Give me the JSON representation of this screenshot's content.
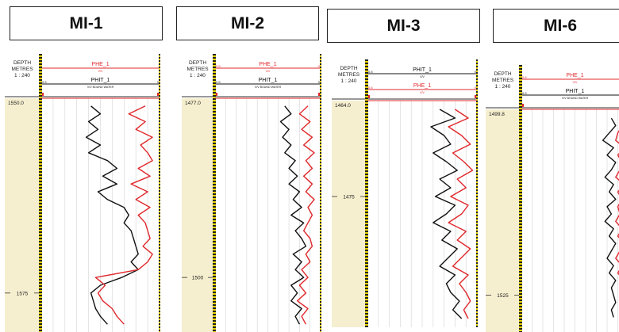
{
  "chart_data": [
    {
      "type": "line",
      "well": "MI-1",
      "depth_header": [
        "DEPTH",
        "METRES",
        "1 : 240"
      ],
      "curve_headers": [
        {
          "name": "PHE_1",
          "color": "#e0282c",
          "scale_left": "",
          "scale_right": "",
          "unit": "V/V"
        },
        {
          "name": "PHIT_1",
          "color": "#111111",
          "scale_left": "0.5",
          "scale_right": "0",
          "unit": "V/V BOUND WATER"
        }
      ],
      "top_depth_label": "1550.0",
      "depth_ticks": [
        {
          "depth": 1575,
          "label": "1575"
        }
      ],
      "depth_range": [
        1550.0,
        1580
      ],
      "x_scale": [
        0.5,
        0
      ],
      "series": [
        {
          "name": "PHIT_1",
          "color": "#111111",
          "depth": [
            1551,
            1552,
            1553,
            1554,
            1555,
            1556,
            1557,
            1558,
            1559,
            1560,
            1561,
            1562,
            1563,
            1564,
            1565,
            1566,
            1567,
            1568,
            1569,
            1570,
            1571,
            1572,
            1573,
            1574,
            1575,
            1576,
            1577,
            1578,
            1579
          ],
          "value": [
            0.29,
            0.25,
            0.3,
            0.26,
            0.31,
            0.25,
            0.3,
            0.22,
            0.18,
            0.24,
            0.18,
            0.26,
            0.22,
            0.15,
            0.13,
            0.15,
            0.12,
            0.11,
            0.1,
            0.09,
            0.12,
            0.09,
            0.16,
            0.25,
            0.29,
            0.28,
            0.27,
            0.25,
            0.22
          ]
        },
        {
          "name": "PHE_1",
          "color": "#e0282c",
          "depth": [
            1551,
            1552,
            1553,
            1554,
            1555,
            1556,
            1557,
            1558,
            1559,
            1560,
            1561,
            1562,
            1563,
            1564,
            1565,
            1566,
            1567,
            1568,
            1569,
            1570,
            1571,
            1572,
            1573,
            1574,
            1575,
            1576,
            1577,
            1578,
            1579
          ],
          "value": [
            0.06,
            0.13,
            0.06,
            0.1,
            0.03,
            0.08,
            0.05,
            0.03,
            0.09,
            0.04,
            0.12,
            0.05,
            0.1,
            0.04,
            0.09,
            0.06,
            0.05,
            0.04,
            0.07,
            0.03,
            0.05,
            0.09,
            0.27,
            0.23,
            0.26,
            0.24,
            0.2,
            0.18,
            0.15
          ]
        }
      ]
    },
    {
      "type": "line",
      "well": "MI-2",
      "depth_header": [
        "DEPTH",
        "METRES",
        "1 : 240"
      ],
      "curve_headers": [
        {
          "name": "PHE_1",
          "color": "#e0282c",
          "scale_left": "0.5",
          "scale_right": "0",
          "unit": "V/V"
        },
        {
          "name": "PHIT_1",
          "color": "#111111",
          "scale_left": "0.5",
          "scale_right": "0",
          "unit": "V/V BOUND WATER"
        }
      ],
      "top_depth_label": "1477.0",
      "depth_ticks": [
        {
          "depth": 1500,
          "label": "1500"
        }
      ],
      "depth_range": [
        1477.0,
        1507
      ],
      "x_scale": [
        0.5,
        0
      ],
      "series": [
        {
          "name": "PHIT_1",
          "color": "#111111",
          "depth": [
            1478,
            1479,
            1480,
            1481,
            1482,
            1483,
            1484,
            1485,
            1486,
            1487,
            1488,
            1489,
            1490,
            1491,
            1492,
            1493,
            1494,
            1495,
            1496,
            1497,
            1498,
            1499,
            1500,
            1501,
            1502,
            1503,
            1504,
            1505,
            1506
          ],
          "value": [
            0.17,
            0.14,
            0.19,
            0.15,
            0.18,
            0.14,
            0.17,
            0.12,
            0.15,
            0.11,
            0.15,
            0.1,
            0.13,
            0.09,
            0.14,
            0.08,
            0.12,
            0.09,
            0.07,
            0.13,
            0.09,
            0.12,
            0.08,
            0.14,
            0.11,
            0.14,
            0.09,
            0.12,
            0.1
          ]
        },
        {
          "name": "PHE_1",
          "color": "#e0282c",
          "depth": [
            1478,
            1479,
            1480,
            1481,
            1482,
            1483,
            1484,
            1485,
            1486,
            1487,
            1488,
            1489,
            1490,
            1491,
            1492,
            1493,
            1494,
            1495,
            1496,
            1497,
            1498,
            1499,
            1500,
            1501,
            1502,
            1503,
            1504,
            1505,
            1506
          ],
          "value": [
            0.06,
            0.1,
            0.05,
            0.09,
            0.04,
            0.08,
            0.03,
            0.07,
            0.04,
            0.08,
            0.04,
            0.07,
            0.03,
            0.06,
            0.04,
            0.06,
            0.08,
            0.05,
            0.04,
            0.07,
            0.05,
            0.09,
            0.06,
            0.1,
            0.07,
            0.11,
            0.06,
            0.09,
            0.07
          ]
        }
      ]
    },
    {
      "type": "line",
      "well": "MI-3",
      "depth_header": [
        "DEPTH",
        "METRES",
        "1 : 240"
      ],
      "curve_headers": [
        {
          "name": "PHIT_1",
          "color": "#111111",
          "scale_left": "0.5",
          "scale_right": "0",
          "unit": "V/V"
        },
        {
          "name": "PHE_1",
          "color": "#e0282c",
          "scale_left": "0.5",
          "scale_right": "0",
          "unit": "V/V"
        }
      ],
      "top_depth_label": "1464.0",
      "depth_ticks": [
        {
          "depth": 1475,
          "label": "1475"
        }
      ],
      "depth_range": [
        1464.0,
        1490
      ],
      "x_scale": [
        0.5,
        0
      ],
      "series": [
        {
          "name": "PHIT_1",
          "color": "#111111",
          "depth": [
            1465,
            1466,
            1467,
            1468,
            1469,
            1470,
            1471,
            1472,
            1473,
            1474,
            1475,
            1476,
            1477,
            1478,
            1479,
            1480,
            1481,
            1482,
            1483,
            1484,
            1485,
            1486,
            1487,
            1488,
            1489
          ],
          "value": [
            0.17,
            0.1,
            0.21,
            0.15,
            0.12,
            0.2,
            0.14,
            0.09,
            0.17,
            0.12,
            0.19,
            0.1,
            0.14,
            0.2,
            0.12,
            0.16,
            0.09,
            0.13,
            0.17,
            0.1,
            0.14,
            0.12,
            0.08,
            0.11,
            0.07
          ]
        },
        {
          "name": "PHE_1",
          "color": "#e0282c",
          "depth": [
            1465,
            1466,
            1467,
            1468,
            1469,
            1470,
            1471,
            1472,
            1473,
            1474,
            1475,
            1476,
            1477,
            1478,
            1479,
            1480,
            1481,
            1482,
            1483,
            1484,
            1485,
            1486,
            1487,
            1488,
            1489
          ],
          "value": [
            0.1,
            0.04,
            0.13,
            0.07,
            0.03,
            0.11,
            0.06,
            0.02,
            0.09,
            0.05,
            0.12,
            0.04,
            0.07,
            0.13,
            0.05,
            0.09,
            0.03,
            0.07,
            0.11,
            0.04,
            0.08,
            0.05,
            0.03,
            0.06,
            0.04
          ]
        }
      ]
    },
    {
      "type": "line",
      "well": "MI-6",
      "depth_header": [
        "DEPTH",
        "METRES",
        "1 : 240"
      ],
      "curve_headers": [
        {
          "name": "PHE_1",
          "color": "#e0282c",
          "scale_left": "0.5",
          "scale_right": "",
          "unit": "V/V"
        },
        {
          "name": "PHIT_1",
          "color": "#111111",
          "scale_left": "0.5",
          "scale_right": "",
          "unit": "V/V BOUND WATER"
        }
      ],
      "top_depth_label": "1499.8",
      "depth_ticks": [
        {
          "depth": 1525,
          "label": "1525"
        }
      ],
      "depth_range": [
        1499.8,
        1530
      ],
      "x_scale": [
        0.5,
        0
      ],
      "series": [
        {
          "name": "PHIT_1",
          "color": "#111111",
          "depth": [
            1501,
            1502,
            1503,
            1504,
            1505,
            1506,
            1507,
            1508,
            1509,
            1510,
            1511,
            1512,
            1513,
            1514,
            1515,
            1516,
            1517,
            1518,
            1519,
            1520,
            1521,
            1522,
            1523,
            1524,
            1525,
            1526,
            1527,
            1528
          ],
          "value": [
            0.08,
            0.06,
            0.09,
            0.12,
            0.07,
            0.1,
            0.06,
            0.08,
            0.11,
            0.07,
            0.09,
            0.06,
            0.1,
            0.08,
            0.11,
            0.07,
            0.09,
            0.06,
            0.08,
            0.1,
            0.07,
            0.09,
            0.06,
            0.08,
            0.07,
            0.06,
            0.08,
            0.07
          ]
        },
        {
          "name": "PHE_1",
          "color": "#e0282c",
          "depth": [
            1501,
            1502,
            1503,
            1504,
            1505,
            1506,
            1507,
            1508,
            1509,
            1510,
            1511,
            1512,
            1513,
            1514,
            1515,
            1516,
            1517,
            1518,
            1519,
            1520,
            1521,
            1522,
            1523,
            1524,
            1525,
            1526,
            1527,
            1528
          ],
          "value": [
            0.04,
            0.03,
            0.05,
            0.06,
            0.02,
            0.05,
            0.03,
            0.04,
            0.06,
            0.02,
            0.05,
            0.03,
            0.05,
            0.04,
            0.06,
            0.03,
            0.05,
            0.02,
            0.04,
            0.06,
            0.03,
            0.05,
            0.02,
            0.04,
            0.03,
            0.02,
            0.04,
            0.03
          ]
        }
      ]
    }
  ]
}
